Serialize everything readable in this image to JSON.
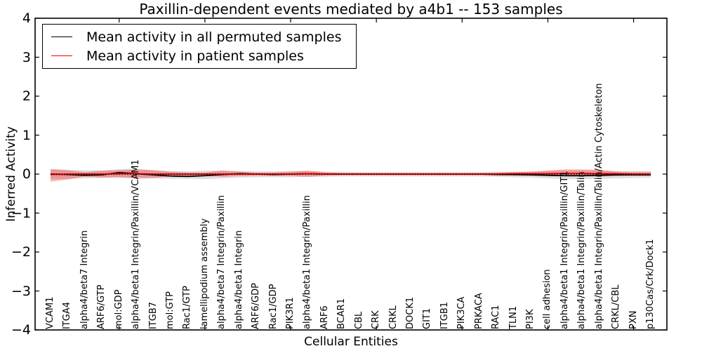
{
  "chart_data": {
    "type": "line",
    "title": "Paxillin-dependent events mediated by a4b1 -- 153 samples",
    "xlabel": "Cellular Entities",
    "ylabel": "Inferred Activity",
    "ylim": [
      -4,
      4
    ],
    "yticks": [
      4,
      3,
      2,
      1,
      0,
      -1,
      -2,
      -3,
      -4
    ],
    "ytick_labels": [
      "4",
      "3",
      "2",
      "1",
      "0",
      "−1",
      "−2",
      "−3",
      "−4"
    ],
    "grid": false,
    "legend_position": "upper left",
    "zero_reference_line": {
      "style": "dotted",
      "color": "#000000",
      "y": 0
    },
    "categories": [
      "VCAM1",
      "ITGA4",
      "alpha4/beta7 Integrin",
      "ARF6/GTP",
      "mol:GDP",
      "alpha4/beta1 Integrin/Paxillin/VCAM1",
      "ITGB7",
      "mol:GTP",
      "Rac1/GTP",
      "lamellipodium assembly",
      "alpha4/beta7 Integrin/Paxillin",
      "alpha4/beta1 Integrin",
      "ARF6/GDP",
      "Rac1/GDP",
      "PIK3R1",
      "alpha4/beta1 Integrin/Paxillin",
      "ARF6",
      "BCAR1",
      "CBL",
      "CRK",
      "CRKL",
      "DOCK1",
      "GIT1",
      "ITGB1",
      "PIK3CA",
      "PRKACA",
      "RAC1",
      "TLN1",
      "PI3K",
      "cell adhesion",
      "alpha4/beta1 Integrin/Paxillin/GIT1",
      "alpha4/beta1 Integrin/Paxillin/Talin",
      "alpha4/beta1 Integrin/Paxillin/Talin/Actin Cytoskeleton",
      "CRKL/CBL",
      "PXN",
      "p130Cas/Crk/Dock1"
    ],
    "series": [
      {
        "name": "Mean activity in all permuted samples",
        "color": "#000000",
        "line_style": "solid",
        "band_color": "rgba(0,0,0,0.13)",
        "values": [
          0.0,
          -0.01,
          -0.03,
          -0.02,
          0.04,
          0.01,
          -0.02,
          -0.05,
          -0.06,
          -0.04,
          -0.01,
          0.01,
          0.0,
          -0.01,
          0.0,
          0.01,
          0.0,
          0.0,
          0.0,
          0.0,
          0.0,
          0.0,
          0.0,
          0.0,
          0.0,
          0.0,
          -0.01,
          -0.01,
          -0.02,
          -0.03,
          -0.04,
          -0.04,
          -0.03,
          -0.02,
          -0.02,
          -0.02
        ],
        "band_upper": [
          0.12,
          0.11,
          0.1,
          0.09,
          0.13,
          0.14,
          0.1,
          0.08,
          0.07,
          0.09,
          0.09,
          0.08,
          0.07,
          0.07,
          0.08,
          0.07,
          0.06,
          0.06,
          0.05,
          0.05,
          0.05,
          0.05,
          0.05,
          0.05,
          0.05,
          0.05,
          0.06,
          0.06,
          0.07,
          0.08,
          0.09,
          0.09,
          0.09,
          0.08,
          0.08,
          0.08
        ],
        "band_lower": [
          -0.12,
          -0.12,
          -0.11,
          -0.1,
          -0.09,
          -0.12,
          -0.11,
          -0.12,
          -0.12,
          -0.13,
          -0.11,
          -0.09,
          -0.08,
          -0.08,
          -0.08,
          -0.07,
          -0.07,
          -0.06,
          -0.06,
          -0.06,
          -0.06,
          -0.06,
          -0.06,
          -0.06,
          -0.06,
          -0.06,
          -0.07,
          -0.08,
          -0.09,
          -0.11,
          -0.13,
          -0.13,
          -0.12,
          -0.11,
          -0.1,
          -0.09
        ]
      },
      {
        "name": "Mean activity in patient samples",
        "color": "#ff0000",
        "line_style": "solid",
        "band_color": "rgba(255,0,0,0.32)",
        "values": [
          -0.01,
          0.0,
          0.0,
          0.0,
          0.01,
          0.01,
          0.0,
          0.0,
          0.0,
          0.0,
          0.0,
          0.0,
          0.0,
          0.0,
          0.0,
          0.01,
          0.0,
          0.0,
          0.0,
          0.0,
          0.0,
          0.0,
          0.0,
          0.0,
          0.0,
          0.0,
          0.0,
          0.01,
          0.01,
          0.01,
          0.02,
          0.02,
          0.01,
          0.01,
          0.0,
          0.0
        ],
        "band_upper": [
          0.13,
          0.1,
          0.05,
          0.09,
          0.1,
          0.12,
          0.1,
          0.06,
          0.04,
          0.04,
          0.09,
          0.06,
          0.04,
          0.04,
          0.06,
          0.09,
          0.05,
          0.03,
          0.03,
          0.03,
          0.03,
          0.03,
          0.03,
          0.03,
          0.03,
          0.03,
          0.04,
          0.05,
          0.06,
          0.09,
          0.12,
          0.12,
          0.11,
          0.06,
          0.05,
          0.05
        ],
        "band_lower": [
          -0.19,
          -0.14,
          -0.06,
          -0.09,
          -0.08,
          -0.1,
          -0.1,
          -0.06,
          -0.04,
          -0.04,
          -0.07,
          -0.05,
          -0.04,
          -0.04,
          -0.05,
          -0.07,
          -0.04,
          -0.03,
          -0.03,
          -0.03,
          -0.03,
          -0.03,
          -0.03,
          -0.03,
          -0.03,
          -0.03,
          -0.03,
          -0.04,
          -0.04,
          -0.05,
          -0.06,
          -0.06,
          -0.06,
          -0.05,
          -0.04,
          -0.04
        ]
      }
    ]
  }
}
